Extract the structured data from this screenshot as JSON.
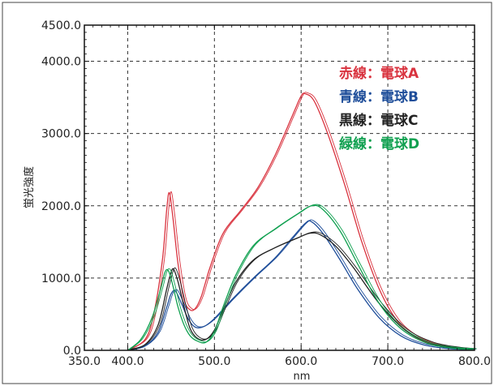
{
  "chart_data": {
    "type": "line",
    "xlabel": "nm",
    "ylabel": "蛍光強度",
    "xlim": [
      350,
      800
    ],
    "ylim": [
      0,
      4500
    ],
    "grid": true,
    "legend_position": "top-right",
    "x_ticks": [
      {
        "value": 350,
        "label": "350.0"
      },
      {
        "value": 400,
        "label": "400.0"
      },
      {
        "value": 500,
        "label": "500.0"
      },
      {
        "value": 600,
        "label": "600.0"
      },
      {
        "value": 700,
        "label": "700.0"
      },
      {
        "value": 800,
        "label": "800.0"
      }
    ],
    "y_ticks": [
      {
        "value": 0,
        "label": "0.0"
      },
      {
        "value": 1000,
        "label": "1000.0"
      },
      {
        "value": 2000,
        "label": "2000.0"
      },
      {
        "value": 3000,
        "label": "3000.0"
      },
      {
        "value": 4000,
        "label": "4000.0"
      },
      {
        "value": 4500,
        "label": "4500.0"
      }
    ],
    "legend": [
      {
        "prefix": "赤線",
        "sep": "：",
        "label": "電球A",
        "color": "#d9333f"
      },
      {
        "prefix": "青線",
        "sep": "：",
        "label": "電球B",
        "color": "#1f4e9a"
      },
      {
        "prefix": "黒線",
        "sep": "：",
        "label": "電球C",
        "color": "#222222"
      },
      {
        "prefix": "緑線",
        "sep": "：",
        "label": "電球D",
        "color": "#10a050"
      }
    ],
    "series": [
      {
        "color": "#d9333f",
        "x": [
          400,
          420,
          430,
          440,
          445,
          448,
          452,
          458,
          465,
          472,
          478,
          485,
          495,
          510,
          530,
          550,
          570,
          590,
          600,
          605,
          615,
          630,
          650,
          670,
          690,
          710,
          730,
          750,
          770,
          790,
          800
        ],
        "y": [
          0,
          150,
          500,
          1250,
          1950,
          2180,
          1850,
          1200,
          700,
          560,
          580,
          750,
          1150,
          1620,
          1930,
          2250,
          2700,
          3250,
          3520,
          3550,
          3450,
          3020,
          2300,
          1500,
          850,
          420,
          200,
          90,
          40,
          15,
          10
        ]
      },
      {
        "color": "#1f4e9a",
        "x": [
          400,
          420,
          435,
          445,
          450,
          455,
          462,
          470,
          478,
          488,
          500,
          520,
          545,
          570,
          590,
          605,
          612,
          625,
          645,
          665,
          690,
          715,
          740,
          765,
          790,
          800
        ],
        "y": [
          0,
          60,
          250,
          600,
          780,
          820,
          650,
          430,
          320,
          330,
          440,
          700,
          1000,
          1280,
          1560,
          1760,
          1780,
          1620,
          1250,
          850,
          450,
          200,
          80,
          30,
          10,
          5
        ]
      },
      {
        "color": "#222222",
        "x": [
          400,
          420,
          435,
          445,
          450,
          453,
          458,
          465,
          472,
          480,
          490,
          500,
          510,
          525,
          545,
          570,
          595,
          610,
          622,
          640,
          660,
          690,
          720,
          750,
          780,
          800
        ],
        "y": [
          0,
          80,
          350,
          850,
          1080,
          1120,
          950,
          600,
          300,
          170,
          150,
          280,
          560,
          950,
          1250,
          1420,
          1550,
          1620,
          1600,
          1440,
          1150,
          650,
          280,
          100,
          30,
          10
        ]
      },
      {
        "color": "#10a050",
        "x": [
          400,
          415,
          428,
          438,
          443,
          447,
          452,
          458,
          465,
          472,
          480,
          490,
          500,
          510,
          525,
          545,
          570,
          595,
          612,
          625,
          645,
          665,
          690,
          715,
          745,
          775,
          800
        ],
        "y": [
          0,
          150,
          450,
          850,
          1080,
          1100,
          900,
          600,
          350,
          200,
          130,
          110,
          260,
          600,
          1050,
          1450,
          1680,
          1880,
          2000,
          1950,
          1650,
          1200,
          650,
          300,
          100,
          30,
          10
        ]
      }
    ]
  }
}
